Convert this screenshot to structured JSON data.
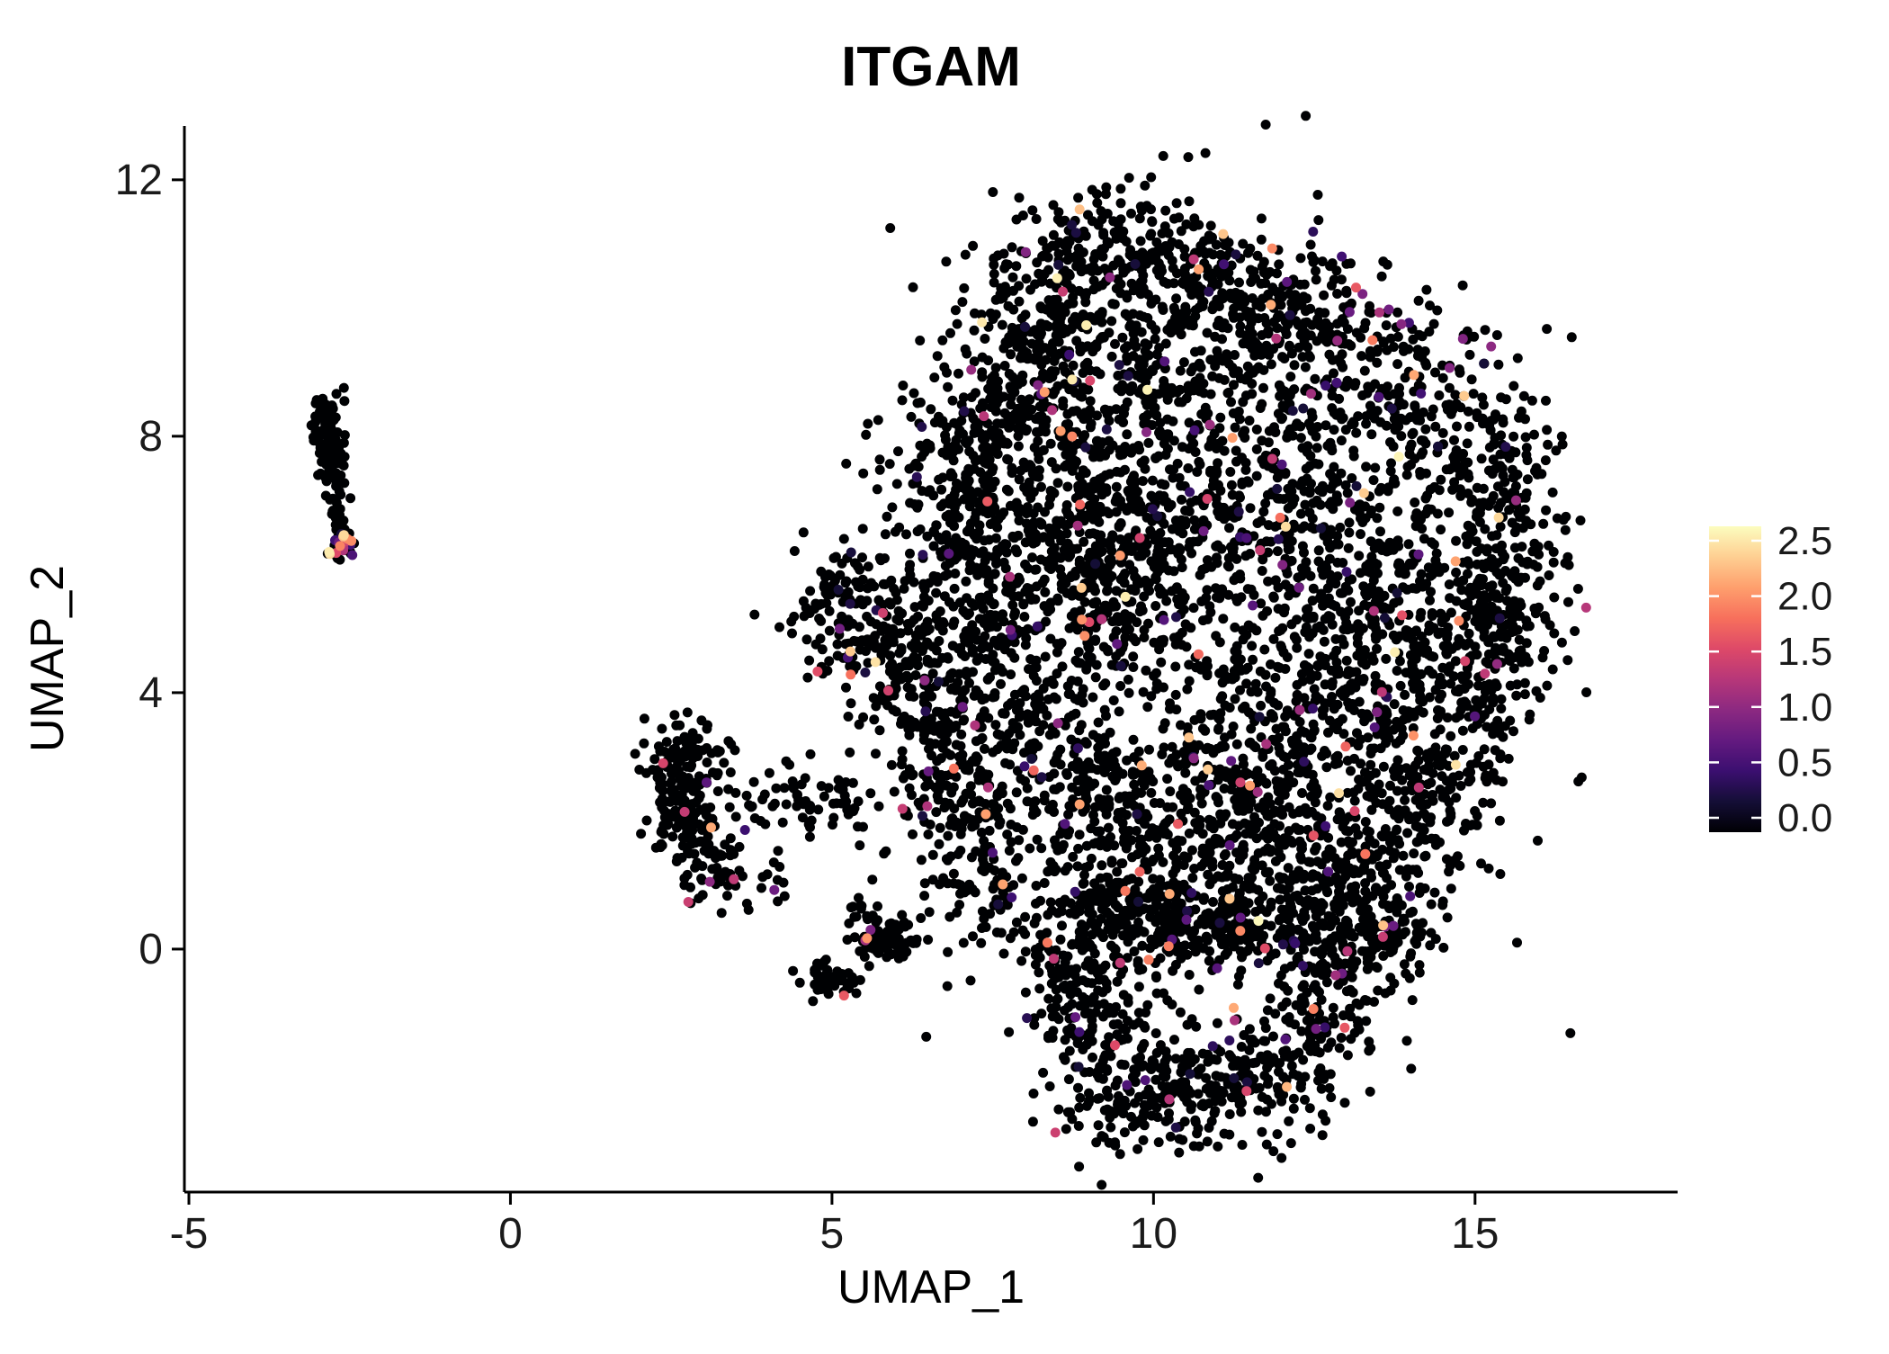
{
  "figure": {
    "title": "ITGAM",
    "background": "#ffffff"
  },
  "chart_data": {
    "type": "scatter",
    "title": "ITGAM",
    "xlabel": "UMAP_1",
    "ylabel": "UMAP_2",
    "xlim": [
      -5.07,
      18.15
    ],
    "ylim": [
      -3.79,
      12.84
    ],
    "x_ticks": [
      -5,
      0,
      5,
      10,
      15
    ],
    "y_ticks": [
      0,
      4,
      8,
      12
    ],
    "grid": false,
    "axis_color": "#000000",
    "legend": {
      "position": "right",
      "ticks": [
        "2.5",
        "2.0",
        "1.5",
        "1.0",
        "0.5",
        "0.0"
      ],
      "tick_values": [
        2.5,
        2.0,
        1.5,
        1.0,
        0.5,
        0.0
      ],
      "range": [
        0,
        2.5
      ]
    },
    "colormap": {
      "name": "magma",
      "stops": [
        "#000004",
        "#140e36",
        "#3b0f70",
        "#641a80",
        "#8c2981",
        "#b73779",
        "#de4968",
        "#f7705c",
        "#fe9f6d",
        "#fecf92",
        "#fcfdbf"
      ]
    },
    "point": {
      "radius": 5.5,
      "zero_color": "#000103"
    },
    "expression": {
      "fraction": 0.035,
      "min": 0.25,
      "max": 2.5,
      "exponent": 2.0
    },
    "seed": 42,
    "clusters": [
      {
        "x": -2.85,
        "y": 8.15,
        "sx": 0.13,
        "sy": 0.33,
        "n": 80,
        "ef": 0
      },
      {
        "x": -2.75,
        "y": 7.55,
        "sx": 0.1,
        "sy": 0.22,
        "n": 30,
        "ef": 0
      },
      {
        "x": -2.7,
        "y": 6.95,
        "sx": 0.07,
        "sy": 0.22,
        "n": 25,
        "ef": 0
      },
      {
        "x": -2.63,
        "y": 6.3,
        "sx": 0.1,
        "sy": 0.14,
        "n": 40,
        "ef": 0.3
      },
      {
        "x": 2.7,
        "y": 2.85,
        "sx": 0.33,
        "sy": 0.38,
        "n": 120,
        "ef": 0.01
      },
      {
        "x": 2.6,
        "y": 2.05,
        "sx": 0.25,
        "sy": 0.28,
        "n": 55,
        "ef": 0.01
      },
      {
        "x": 3.15,
        "y": 1.4,
        "sx": 0.3,
        "sy": 0.33,
        "n": 65,
        "ef": 0.05
      },
      {
        "x": 4.15,
        "y": 2.35,
        "sx": 0.55,
        "sy": 0.25,
        "n": 45,
        "ef": 0.02
      },
      {
        "x": 5.25,
        "y": 2.3,
        "sx": 0.45,
        "sy": 0.25,
        "n": 28,
        "ef": 0.02
      },
      {
        "x": 3.9,
        "y": 0.95,
        "sx": 0.5,
        "sy": 0.28,
        "n": 22,
        "ef": 0.05
      },
      {
        "x": 5.85,
        "y": 0.1,
        "sx": 0.28,
        "sy": 0.17,
        "n": 85,
        "ef": 0.02
      },
      {
        "x": 5.0,
        "y": -0.48,
        "sx": 0.22,
        "sy": 0.14,
        "n": 48,
        "ef": 0.01
      },
      {
        "x": 5.45,
        "y": 0.55,
        "sx": 0.16,
        "sy": 0.14,
        "n": 14,
        "ef": 0
      },
      {
        "x": 9.3,
        "y": 10.85,
        "sx": 0.85,
        "sy": 0.45,
        "n": 200
      },
      {
        "x": 10.8,
        "y": 10.3,
        "sx": 0.8,
        "sy": 0.5,
        "n": 170
      },
      {
        "x": 12.3,
        "y": 9.9,
        "sx": 0.7,
        "sy": 0.5,
        "n": 150
      },
      {
        "x": 8.3,
        "y": 9.8,
        "sx": 0.6,
        "sy": 0.5,
        "n": 140
      },
      {
        "x": 13.8,
        "y": 8.8,
        "sx": 0.7,
        "sy": 0.6,
        "n": 160
      },
      {
        "x": 14.9,
        "y": 7.6,
        "sx": 0.6,
        "sy": 0.7,
        "n": 150
      },
      {
        "x": 15.5,
        "y": 6.0,
        "sx": 0.5,
        "sy": 0.8,
        "n": 140
      },
      {
        "x": 15.0,
        "y": 4.3,
        "sx": 0.65,
        "sy": 0.8,
        "n": 180
      },
      {
        "x": 13.9,
        "y": 5.3,
        "sx": 0.8,
        "sy": 0.8,
        "n": 220
      },
      {
        "x": 14.3,
        "y": 2.7,
        "sx": 0.7,
        "sy": 0.7,
        "n": 150
      },
      {
        "x": 7.4,
        "y": 5.6,
        "sx": 0.5,
        "sy": 1.2,
        "n": 270
      },
      {
        "x": 7.0,
        "y": 7.3,
        "sx": 0.6,
        "sy": 0.8,
        "n": 190
      },
      {
        "x": 8.0,
        "y": 8.6,
        "sx": 0.7,
        "sy": 0.6,
        "n": 170
      },
      {
        "x": 5.4,
        "y": 5.3,
        "sx": 0.55,
        "sy": 0.55,
        "n": 150
      },
      {
        "x": 6.2,
        "y": 4.3,
        "sx": 0.5,
        "sy": 0.6,
        "n": 130
      },
      {
        "x": 8.8,
        "y": 7.0,
        "sx": 0.5,
        "sy": 0.9,
        "n": 210
      },
      {
        "x": 9.4,
        "y": 5.6,
        "sx": 0.5,
        "sy": 0.8,
        "n": 190
      },
      {
        "x": 10.3,
        "y": 6.9,
        "sx": 0.9,
        "sy": 0.9,
        "n": 170
      },
      {
        "x": 11.5,
        "y": 6.2,
        "sx": 0.9,
        "sy": 0.9,
        "n": 160
      },
      {
        "x": 12.6,
        "y": 6.9,
        "sx": 0.7,
        "sy": 0.8,
        "n": 150
      },
      {
        "x": 11.2,
        "y": 8.6,
        "sx": 0.8,
        "sy": 0.7,
        "n": 140
      },
      {
        "x": 9.9,
        "y": 9.3,
        "sx": 0.7,
        "sy": 0.6,
        "n": 130
      },
      {
        "x": 8.2,
        "y": 3.4,
        "sx": 0.7,
        "sy": 0.9,
        "n": 170
      },
      {
        "x": 9.3,
        "y": 2.3,
        "sx": 0.7,
        "sy": 0.8,
        "n": 190
      },
      {
        "x": 10.6,
        "y": 1.6,
        "sx": 0.9,
        "sy": 0.7,
        "n": 210
      },
      {
        "x": 12.0,
        "y": 2.3,
        "sx": 0.8,
        "sy": 0.8,
        "n": 190
      },
      {
        "x": 13.2,
        "y": 1.5,
        "sx": 0.7,
        "sy": 0.6,
        "n": 160
      },
      {
        "x": 11.3,
        "y": 3.6,
        "sx": 0.8,
        "sy": 0.8,
        "n": 120
      },
      {
        "x": 12.8,
        "y": 4.0,
        "sx": 0.7,
        "sy": 0.7,
        "n": 140
      },
      {
        "x": 9.7,
        "y": 0.5,
        "sx": 1.0,
        "sy": 0.4,
        "n": 250
      },
      {
        "x": 11.5,
        "y": 0.3,
        "sx": 1.0,
        "sy": 0.35,
        "n": 230
      },
      {
        "x": 13.3,
        "y": 0.3,
        "sx": 0.6,
        "sy": 0.4,
        "n": 130
      },
      {
        "x": 7.2,
        "y": 1.5,
        "sx": 0.4,
        "sy": 0.8,
        "n": 110
      },
      {
        "x": 6.7,
        "y": 2.9,
        "sx": 0.45,
        "sy": 0.7,
        "n": 120
      },
      {
        "x": 9.3,
        "y": -1.6,
        "sx": 0.6,
        "sy": 0.7,
        "n": 150
      },
      {
        "x": 10.3,
        "y": -2.3,
        "sx": 0.7,
        "sy": 0.5,
        "n": 140
      },
      {
        "x": 11.6,
        "y": -2.0,
        "sx": 0.7,
        "sy": 0.5,
        "n": 130
      },
      {
        "x": 12.5,
        "y": -1.2,
        "sx": 0.5,
        "sy": 0.5,
        "n": 85
      },
      {
        "x": 8.8,
        "y": -0.6,
        "sx": 0.4,
        "sy": 0.4,
        "n": 75
      },
      {
        "x": 12.9,
        "y": -0.4,
        "sx": 0.4,
        "sy": 0.4,
        "n": 55
      },
      {
        "x": 10.5,
        "y": 5.2,
        "sx": 2.6,
        "sy": 3.1,
        "n": 380
      }
    ],
    "highlight_points": [
      {
        "x": 13.15,
        "y": 10.32,
        "v": 1.6
      },
      {
        "x": 13.25,
        "y": 10.22,
        "v": 0.9
      },
      {
        "x": 15.25,
        "y": 9.4,
        "v": 1.0
      },
      {
        "x": 14.75,
        "y": 5.12,
        "v": 1.9
      },
      {
        "x": 11.5,
        "y": 2.55,
        "v": 2.0
      },
      {
        "x": 11.35,
        "y": 2.6,
        "v": 1.4
      },
      {
        "x": 11.62,
        "y": 2.45,
        "v": 1.1
      },
      {
        "x": 10.55,
        "y": 3.3,
        "v": 2.2
      },
      {
        "x": 10.7,
        "y": 4.6,
        "v": 1.7
      },
      {
        "x": 9.0,
        "y": 5.1,
        "v": 1.5
      },
      {
        "x": -2.6,
        "y": 6.22,
        "v": 1.2
      },
      {
        "x": -2.66,
        "y": 6.32,
        "v": 0.8
      },
      {
        "x": -2.71,
        "y": 6.18,
        "v": 1.5
      },
      {
        "x": 8.35,
        "y": 0.1,
        "v": 1.8
      },
      {
        "x": 8.45,
        "y": -0.15,
        "v": 1.3
      },
      {
        "x": 9.4,
        "y": -1.5,
        "v": 1.5
      },
      {
        "x": 13.6,
        "y": 0.35,
        "v": 0.9
      },
      {
        "x": 5.6,
        "y": 0.3,
        "v": 0.9
      },
      {
        "x": 3.1,
        "y": 1.05,
        "v": 1.0
      },
      {
        "x": 3.05,
        "y": 2.6,
        "v": 0.7
      }
    ]
  }
}
